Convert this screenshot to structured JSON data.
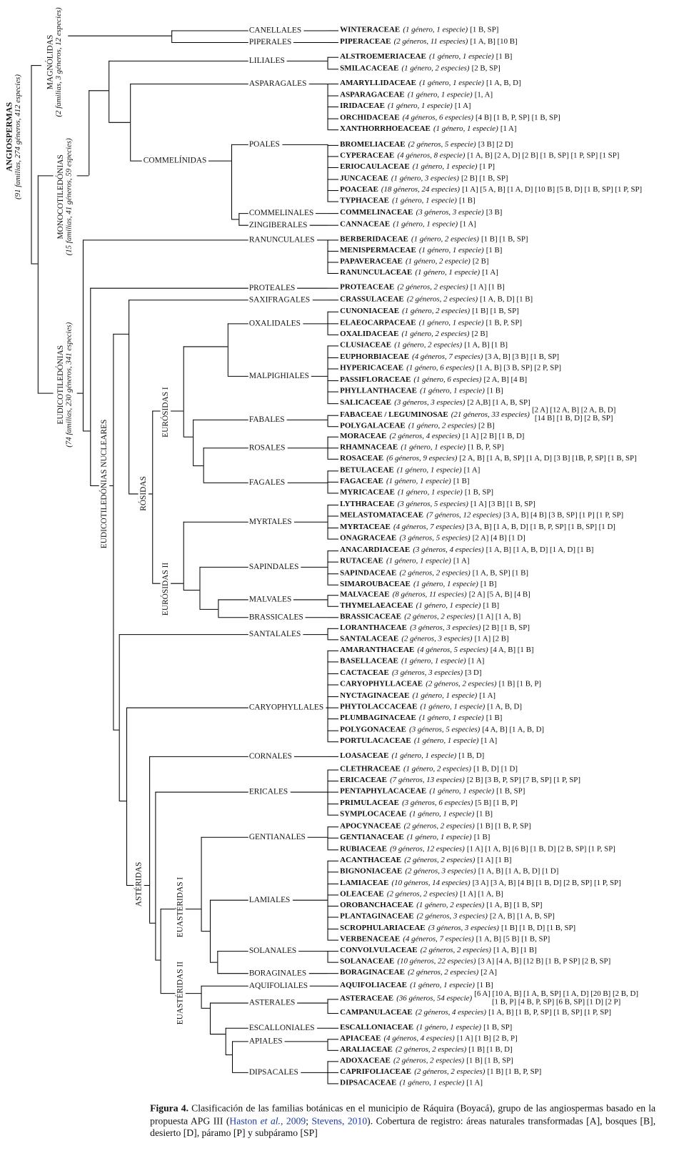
{
  "clades": {
    "angiospermas": {
      "name": "ANGIOSPERMAS",
      "sub": "(91 familias, 274 géneros, 412 especies)"
    },
    "magnolidas": {
      "name": "MAGNÓLIDAS",
      "sub": "(2 familias, 3 géneros, 12 especies)"
    },
    "monocot": {
      "name": "MONOCOTILEDÓNIAS",
      "sub": "(15 familias, 41 géneros, 59 especies)"
    },
    "eudicot": {
      "name": "EUDICOTILEDÓNIAS",
      "sub": "(74 familias, 230 géneros, 341 especies)"
    },
    "commelinidas": "COMMELÍNIDAS",
    "nucleares": "EUDICOTILEDÓNIAS NUCLEARES",
    "rosidas": "RÓSIDAS",
    "eurosidas1": "EURÓSIDAS I",
    "eurosidas2": "EURÓSIDAS II",
    "asteridas": "ASTÉRIDAS",
    "euasteridas1": "EUASTÉRIDAS I",
    "euasteridas2": "EUASTÉRIDAS II"
  },
  "orders": [
    {
      "name": "CANELLALES",
      "families": [
        {
          "name": "WINTERACEAE",
          "count": "(1 género, 1 especie)",
          "records": "[1 B, SP]"
        }
      ]
    },
    {
      "name": "PIPERALES",
      "families": [
        {
          "name": "PIPERACEAE",
          "count": "(2 géneros, 11 especies)",
          "records": "[1 A, B] [10 B]"
        }
      ]
    },
    {
      "name": "LILIALES",
      "families": [
        {
          "name": "ALSTROEMERIACEAE",
          "count": "(1 género, 1 especie)",
          "records": "[1 B]"
        },
        {
          "name": "SMILACACEAE",
          "count": "(1 género, 2 especies)",
          "records": "[2 B, SP]"
        }
      ]
    },
    {
      "name": "ASPARAGALES",
      "families": [
        {
          "name": "AMARYLLIDACEAE",
          "count": "(1 género, 1 especie)",
          "records": "[1 A, B, D]"
        },
        {
          "name": "ASPARAGACEAE",
          "count": "(1 género, 1 especie)",
          "records": "[1, A]"
        },
        {
          "name": "IRIDACEAE",
          "count": "(1 género, 1 especie)",
          "records": "[1 A]"
        },
        {
          "name": "ORCHIDACEAE",
          "count": "(4 géneros, 6 especies)",
          "records": "[4 B] [1 B, P, SP] [1 B, SP]"
        },
        {
          "name": "XANTHORRHOEACEAE",
          "count": "(1 género, 1 especie)",
          "records": "[1 A]"
        }
      ]
    },
    {
      "name": "POALES",
      "families": [
        {
          "name": "BROMELIACEAE",
          "count": "(2 géneros, 5 especie)",
          "records": "[3 B] [2 D]"
        },
        {
          "name": "CYPERACEAE",
          "count": "(4 géneros, 8 especie)",
          "records": "[1 A, B] [2 A, D] [2 B] [1 B, SP] [1 P, SP] [1 SP]"
        },
        {
          "name": "ERIOCAULACEAE",
          "count": "(1 género, 1 especie)",
          "records": "[1 P]"
        },
        {
          "name": "JUNCACEAE",
          "count": "(1 género, 3 especies)",
          "records": "[2 B] [1 B, SP]"
        },
        {
          "name": "POACEAE",
          "count": "(18 géneros, 24 especies)",
          "records": "[1 A] [5 A, B] [1 A, D] [10 B] [5 B, D] [1 B, SP] [1 P, SP]"
        },
        {
          "name": "TYPHACEAE",
          "count": "(1 género, 1 especie)",
          "records": "[1 B]"
        }
      ]
    },
    {
      "name": "COMMELINALES",
      "families": [
        {
          "name": "COMMELINACEAE",
          "count": "(3 géneros, 3 especie)",
          "records": "[3 B]"
        }
      ]
    },
    {
      "name": "ZINGIBERALES",
      "families": [
        {
          "name": "CANNACEAE",
          "count": "(1 género, 1 especie)",
          "records": "[1 A]"
        }
      ]
    },
    {
      "name": "RANUNCULALES",
      "families": [
        {
          "name": "BERBERIDACEAE",
          "count": "(1 género, 2 especies)",
          "records": "[1 B] [1 B, SP]"
        },
        {
          "name": "MENISPERMACEAE",
          "count": "(1 género, 1 especie)",
          "records": "[1 B]"
        },
        {
          "name": "PAPAVERACEAE",
          "count": "(1 género, 2 especie)",
          "records": "[2 B]"
        },
        {
          "name": "RANUNCULACEAE",
          "count": "(1 género, 1 especie)",
          "records": "[1 A]"
        }
      ]
    },
    {
      "name": "PROTEALES",
      "families": [
        {
          "name": "PROTEACEAE",
          "count": "(2 géneros, 2 especies)",
          "records": "[1 A] [1 B]"
        }
      ]
    },
    {
      "name": "SAXIFRAGALES",
      "families": [
        {
          "name": "CRASSULACEAE",
          "count": "(2 géneros, 2 especies)",
          "records": "[1 A, B, D] [1 B]"
        }
      ]
    },
    {
      "name": "OXALIDALES",
      "families": [
        {
          "name": "CUNONIACEAE",
          "count": "(1 género, 2 especies)",
          "records": "[1 B] [1 B, SP]"
        },
        {
          "name": "ELAEOCARPACEAE",
          "count": "(1 género, 1 especie)",
          "records": "[1 B, P, SP]"
        },
        {
          "name": "OXALIDACEAE",
          "count": "(1 género, 2 especies)",
          "records": "[2 B]"
        }
      ]
    },
    {
      "name": "MALPIGHIALES",
      "families": [
        {
          "name": "CLUSIACEAE",
          "count": "(1 género, 2 especies)",
          "records": "[1 A, B] [1 B]"
        },
        {
          "name": "EUPHORBIACEAE",
          "count": "(4 géneros, 7 especies)",
          "records": "[3 A, B] [3 B] [1 B, SP]"
        },
        {
          "name": "HYPERICACEAE",
          "count": "(1 género, 6 especies)",
          "records": "[1 A, B] [3 B, SP] [2 P, SP]"
        },
        {
          "name": "PASSIFLORACEAE",
          "count": "(1 género, 6 especies)",
          "records": "[2 A, B] [4 B]"
        },
        {
          "name": "PHYLLANTHACEAE",
          "count": "(1 género, 1 especie)",
          "records": "[1 B]"
        },
        {
          "name": "SALICACEAE",
          "count": "(3 géneros, 3 especies)",
          "records": "[2 A,B] [1 A, B, SP]"
        }
      ]
    },
    {
      "name": "FABALES",
      "families": [
        {
          "name": "FABACEAE / LEGUMINOSAE",
          "count": "(21 géneros, 33 especies)",
          "records_lines": [
            "[2 A] [12 A, B] [2 A, B, D]",
            "[14 B] [1 B, D] [2 B, SP]"
          ]
        },
        {
          "name": "POLYGALACEAE",
          "count": "(1 género, 2 especies)",
          "records": "[2 B]"
        }
      ]
    },
    {
      "name": "ROSALES",
      "families": [
        {
          "name": "MORACEAE",
          "count": "(2 géneros, 4 especies)",
          "records": "[1 A] [2 B] [1 B, D]"
        },
        {
          "name": "RHAMNACEAE",
          "count": "(1 género, 1 especie)",
          "records": "[1 B, P, SP]"
        },
        {
          "name": "ROSACEAE",
          "count": "(6 géneros, 9 especies)",
          "records": "[2 A, B] [1 A, B, SP] [1 A, D] [3 B] [1B, P, SP] [1 B, SP]"
        }
      ]
    },
    {
      "name": "FAGALES",
      "families": [
        {
          "name": "BETULACEAE",
          "count": "(1 género, 1 especie)",
          "records": "[1 A]"
        },
        {
          "name": "FAGACEAE",
          "count": "(1 género, 1 especie)",
          "records": "[1 B]"
        },
        {
          "name": "MYRICACEAE",
          "count": "(1 género, 1 especie)",
          "records": "[1 B, SP]"
        }
      ]
    },
    {
      "name": "MYRTALES",
      "families": [
        {
          "name": "LYTHRACEAE",
          "count": "(3 géneros, 5 especies)",
          "records": "[1 A] [3 B] [1 B, SP]"
        },
        {
          "name": "MELASTOMATACEAE",
          "count": "(7 géneros, 12 especies)",
          "records": "[3 A, B] [4 B] [3 B, SP] [1 P] [1 P, SP]"
        },
        {
          "name": "MYRTACEAE",
          "count": "(4 géneros, 7 especies)",
          "records": "[3 A, B] [1 A, B, D] [1 B, P, SP] [1 B, SP] [1 D]"
        },
        {
          "name": "ONAGRACEAE",
          "count": "(3 géneros, 5 especies)",
          "records": "[2 A] [4 B] [1 D]"
        }
      ]
    },
    {
      "name": "SAPINDALES",
      "families": [
        {
          "name": "ANACARDIACEAE",
          "count": "(3 géneros, 4 especies)",
          "records": "[1 A, B] [1 A, B, D] [1 A, D] [1 B]"
        },
        {
          "name": "RUTACEAE",
          "count": "(1 género, 1 especie)",
          "records": "[1 A]"
        },
        {
          "name": "SAPINDACEAE",
          "count": "(2 géneros, 2 especies)",
          "records": "[1 A, B, SP] [1 B]"
        },
        {
          "name": "SIMAROUBACEAE",
          "count": "(1 género, 1 especie)",
          "records": "[1 B]"
        }
      ]
    },
    {
      "name": "MALVALES",
      "families": [
        {
          "name": "MALVACEAE",
          "count": "(8 géneros, 11 especies)",
          "records": "[2 A] [5 A, B] [4 B]"
        },
        {
          "name": "THYMELAEACEAE",
          "count": "(1 género, 1 especie)",
          "records": "[1 B]"
        }
      ]
    },
    {
      "name": "BRASSICALES",
      "families": [
        {
          "name": "BRASSICACEAE",
          "count": "(2 géneros, 2 especies)",
          "records": "[1 A] [1 A, B]"
        }
      ]
    },
    {
      "name": "SANTALALES",
      "families": [
        {
          "name": "LORANTHACEAE",
          "count": "(3 géneros, 3 especies)",
          "records": "[2 B] [1 B, SP]"
        },
        {
          "name": "SANTALACEAE",
          "count": "(2 géneros, 3 especies)",
          "records": "[1 A] [2 B]"
        }
      ]
    },
    {
      "name": "CARYOPHYLLALES",
      "families": [
        {
          "name": "AMARANTHACEAE",
          "count": "(4 géneros, 5 especies)",
          "records": "[4 A, B] [1 B]"
        },
        {
          "name": "BASELLACEAE",
          "count": "(1 género, 1 especie)",
          "records": "[1 A]"
        },
        {
          "name": "CACTACEAE",
          "count": "(3 géneros, 3 especies)",
          "records": "[3 D]"
        },
        {
          "name": "CARYOPHYLLACEAE",
          "count": "(2 géneros, 2 especies)",
          "records": "[1 B] [1 B, P]"
        },
        {
          "name": "NYCTAGINACEAE",
          "count": "(1 género, 1 especie)",
          "records": "[1 A]"
        },
        {
          "name": "PHYTOLACCACEAE",
          "count": "(1 género, 1 especie)",
          "records": "[1 A, B, D]"
        },
        {
          "name": "PLUMBAGINACEAE",
          "count": "(1 género, 1 especie)",
          "records": "[1 B]"
        },
        {
          "name": "POLYGONACEAE",
          "count": "(3 géneros, 5 especies)",
          "records": "[4 A, B] [1 A, B, D]"
        },
        {
          "name": "PORTULACACEAE",
          "count": "(1 género, 1 especie)",
          "records": "[1 A]"
        }
      ]
    },
    {
      "name": "CORNALES",
      "families": [
        {
          "name": "LOASACEAE",
          "count": "(1 género, 1 especie)",
          "records": "[1 B, D]"
        }
      ]
    },
    {
      "name": "ERICALES",
      "families": [
        {
          "name": "CLETHRACEAE",
          "count": "(1 género, 2 especies)",
          "records": "[1 B, D] [1 D]"
        },
        {
          "name": "ERICACEAE",
          "count": "(7 géneros, 13 especies)",
          "records": "[2 B] [3 B, P, SP] [7 B, SP] [1 P, SP]"
        },
        {
          "name": "PENTAPHYLACACEAE",
          "count": "(1 género, 1 especie)",
          "records": "[1 B, SP]"
        },
        {
          "name": "PRIMULACEAE",
          "count": "(3 géneros, 6 especies)",
          "records": "[5 B] [1 B, P]"
        },
        {
          "name": "SYMPLOCACEAE",
          "count": "(1 género, 1 especie)",
          "records": "[1 B]"
        }
      ]
    },
    {
      "name": "GENTIANALES",
      "families": [
        {
          "name": "APOCYNACEAE",
          "count": "(2 géneros, 2 especies)",
          "records": "[1 B] [1 B, P, SP]"
        },
        {
          "name": "GENTIANACEAE",
          "count": "(1 género, 1 especie)",
          "records": "[1 B]"
        },
        {
          "name": "RUBIACEAE",
          "count": "(9 géneros, 12 especies)",
          "records": "[1 A] [1 A, B] [6 B] [1 B, D] [2 B, SP] [1 P, SP]"
        }
      ]
    },
    {
      "name": "LAMIALES",
      "families": [
        {
          "name": "ACANTHACEAE",
          "count": "(2 géneros, 2 especies)",
          "records": "[1 A] [1 B]"
        },
        {
          "name": "BIGNONIACEAE",
          "count": "(2 géneros, 3 especies)",
          "records": "[1 A, B] [1 A, B, D] [1 D]"
        },
        {
          "name": "LAMIACEAE",
          "count": "(10 géneros, 14 especies)",
          "records": "[3 A] [3 A, B] [4 B] [1 B, D] [2 B, SP] [1 P, SP]"
        },
        {
          "name": "OLEACEAE",
          "count": "(2 géneros, 2 especies)",
          "records": "[1 A] [1 A, B]"
        },
        {
          "name": "OROBANCHACEAE",
          "count": "(1 género, 2 especies)",
          "records": "[1 A, B] [1 B, SP]"
        },
        {
          "name": "PLANTAGINACEAE",
          "count": "(2 géneros, 3 especies)",
          "records": "[2 A, B] [1 A, B, SP]"
        },
        {
          "name": "SCROPHULARIACEAE",
          "count": "(3 géneros, 3 especies)",
          "records": "[1 B] [1 B, D] [1 B, SP]"
        },
        {
          "name": "VERBENACEAE",
          "count": "(4 géneros, 7 especies)",
          "records": "[1 A, B] [5 B] [1 B, SP]"
        }
      ]
    },
    {
      "name": "SOLANALES",
      "families": [
        {
          "name": "CONVOLVULACEAE",
          "count": "(2 géneros, 2 especies)",
          "records": "[1 A, B] [1 B]"
        },
        {
          "name": "SOLANACEAE",
          "count": "(10 géneros, 22 especies)",
          "records": "[3 A] [4 A, B] [12 B] [1 B, P SP] [2 B, SP]"
        }
      ]
    },
    {
      "name": "BORAGINALES",
      "families": [
        {
          "name": "BORAGINACEAE",
          "count": "(2 géneros, 2 especies)",
          "records": "[2 A]"
        }
      ]
    },
    {
      "name": "AQUIFOLIALES",
      "families": [
        {
          "name": "AQUIFOLIACEAE",
          "count": "(1 género, 1 especie)",
          "records": "[1 B]"
        }
      ]
    },
    {
      "name": "ASTERALES",
      "families": [
        {
          "name": "ASTERACEAE",
          "count": "(36 géneros, 54 especie)",
          "records_lines": [
            "[6 A] [10 A, B] [1 A, B, SP] [1 A, D] [20 B] [2 B, D]",
            "[1 B, P] [4 B, P, SP] [6 B, SP] [1 D] [2 P]"
          ]
        },
        {
          "name": "CAMPANULACEAE",
          "count": "(2 géneros, 4 especies)",
          "records": "[1 A, B] [1 B, P, SP] [1 B, SP] [1 P, SP]"
        }
      ]
    },
    {
      "name": "ESCALLONIALES",
      "families": [
        {
          "name": "ESCALLONIACEAE",
          "count": "(1 género, 1 especie)",
          "records": "[1 B, SP]"
        }
      ]
    },
    {
      "name": "APIALES",
      "families": [
        {
          "name": "APIACEAE",
          "count": "(4 géneros, 4 especies)",
          "records": "[1 A] [1 B] [2 B, P]"
        },
        {
          "name": "ARALIACEAE",
          "count": "(2 géneros, 2 especies)",
          "records": "[1 B] [1 B, D]"
        }
      ]
    },
    {
      "name": "DIPSACALES",
      "families": [
        {
          "name": "ADOXACEAE",
          "count": "(2 géneros, 2 especies)",
          "records": "[1 B] [1 B, SP]"
        },
        {
          "name": "CAPRIFOLIACEAE",
          "count": "(2 géneros, 2 especies)",
          "records": "[1 B] [1 B, P, SP]"
        },
        {
          "name": "DIPSACACEAE",
          "count": "(1 género, 1 especie)",
          "records": "[1 A]"
        }
      ]
    }
  ],
  "caption": {
    "label": "Figura 4.",
    "text1": " Clasificación de las familias botánicas en el municipio de Ráquira (Boyacá), grupo de las angiospermas basado en la propuesta APG III (",
    "ref1a": "Haston ",
    "ref1b": "et al.",
    "ref1c": ", 2009",
    "sep": "; ",
    "ref2": "Stevens, 2010",
    "text2": "). Cobertura de registro: áreas naturales transformadas [A], bosques [B], desierto [D], páramo [P] y subpáramo [SP]"
  },
  "colors": {
    "line": "#000000",
    "link": "#1a3aa8"
  }
}
